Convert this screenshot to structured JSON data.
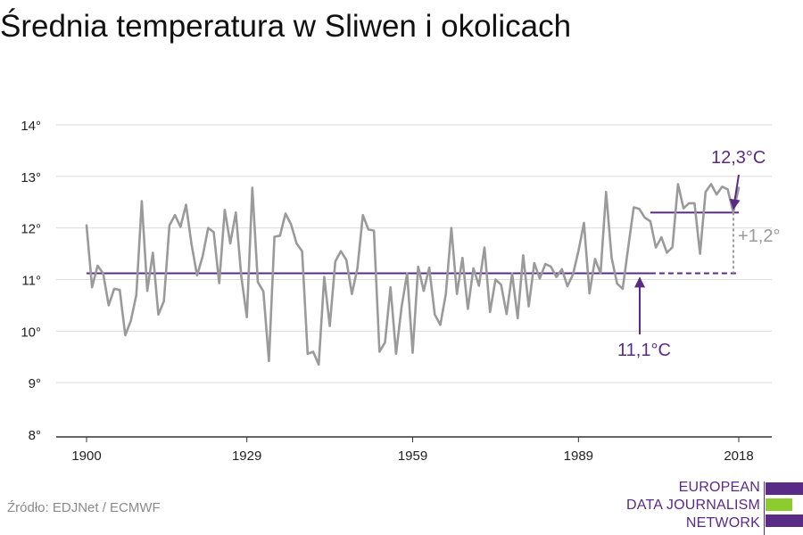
{
  "title": "Średnia temperatura w Sliwen i okolicach",
  "source": "Źródło: EDJNet / ECMWF",
  "logo": {
    "lines": [
      "EUROPEAN",
      "DATA JOURNALISM",
      "NETWORK"
    ],
    "colors": {
      "purple": "#5a2a87",
      "green": "#8ccc2e"
    }
  },
  "colors": {
    "series": "#9a9a9a",
    "reference": "#5a2a87",
    "difference": "#9a9a9a",
    "grid": "#dcdcdc",
    "axis": "#333333"
  },
  "chart_data": {
    "type": "line",
    "title": "Średnia temperatura w Sliwen i okolicach",
    "xlabel": "",
    "ylabel": "",
    "xlim": [
      1900,
      2018
    ],
    "ylim": [
      8,
      14
    ],
    "grid": true,
    "x_ticks": [
      1900,
      1929,
      1959,
      1989,
      2018
    ],
    "x_tick_labels": [
      "1900",
      "1929",
      "1959",
      "1989",
      "2018"
    ],
    "y_ticks": [
      8,
      9,
      10,
      11,
      12,
      13,
      14
    ],
    "y_tick_labels": [
      "8°",
      "9°",
      "10°",
      "11°",
      "12°",
      "13°",
      "14°"
    ],
    "x": [
      1900,
      1901,
      1902,
      1903,
      1904,
      1905,
      1906,
      1907,
      1908,
      1909,
      1910,
      1911,
      1912,
      1913,
      1914,
      1915,
      1916,
      1917,
      1918,
      1919,
      1920,
      1921,
      1922,
      1923,
      1924,
      1925,
      1926,
      1927,
      1928,
      1929,
      1930,
      1931,
      1932,
      1933,
      1934,
      1935,
      1936,
      1937,
      1938,
      1939,
      1940,
      1941,
      1942,
      1943,
      1944,
      1945,
      1946,
      1947,
      1948,
      1949,
      1950,
      1951,
      1952,
      1953,
      1954,
      1955,
      1956,
      1957,
      1958,
      1959,
      1960,
      1961,
      1962,
      1963,
      1964,
      1965,
      1966,
      1967,
      1968,
      1969,
      1970,
      1971,
      1972,
      1973,
      1974,
      1975,
      1976,
      1977,
      1978,
      1979,
      1980,
      1981,
      1982,
      1983,
      1984,
      1985,
      1986,
      1987,
      1988,
      1989,
      1990,
      1991,
      1992,
      1993,
      1994,
      1995,
      1996,
      1997,
      1998,
      1999,
      2000,
      2001,
      2002,
      2003,
      2004,
      2005,
      2006,
      2007,
      2008,
      2009,
      2010,
      2011,
      2012,
      2013,
      2014,
      2015,
      2016,
      2017,
      2018
    ],
    "series": [
      {
        "values": [
          12.05,
          10.85,
          11.27,
          11.12,
          10.5,
          10.82,
          10.8,
          9.92,
          10.2,
          10.7,
          12.52,
          10.78,
          11.52,
          10.32,
          10.58,
          12.05,
          12.25,
          12.02,
          12.45,
          11.68,
          11.08,
          11.45,
          12.0,
          11.92,
          10.93,
          12.35,
          11.7,
          12.3,
          11.05,
          10.27,
          12.78,
          10.95,
          10.77,
          9.42,
          11.83,
          11.85,
          12.28,
          12.07,
          11.7,
          11.55,
          9.56,
          9.6,
          9.35,
          11.05,
          10.1,
          11.35,
          11.55,
          11.38,
          10.72,
          11.22,
          12.25,
          11.97,
          11.95,
          9.6,
          9.78,
          10.85,
          9.56,
          10.47,
          11.12,
          9.58,
          11.25,
          10.78,
          11.23,
          10.32,
          10.12,
          10.72,
          12.0,
          10.72,
          11.42,
          10.43,
          11.22,
          10.88,
          11.62,
          10.37,
          11.0,
          10.9,
          10.33,
          11.12,
          10.25,
          11.47,
          10.48,
          11.32,
          11.02,
          11.3,
          11.25,
          11.05,
          11.2,
          10.87,
          11.1,
          11.55,
          12.1,
          10.73,
          11.4,
          11.12,
          12.7,
          11.42,
          10.92,
          10.82,
          11.62,
          12.4,
          12.37,
          12.2,
          12.13,
          11.62,
          11.82,
          11.52,
          11.63,
          12.85,
          12.38,
          12.48,
          12.48,
          11.5,
          12.7,
          12.85,
          12.65,
          12.8,
          12.75,
          12.3,
          12.78
        ]
      }
    ],
    "reference_line": {
      "x": [
        1900,
        2018
      ],
      "y": 11.12
    },
    "recent_line": {
      "x": [
        2002,
        2018
      ],
      "y": 12.3
    },
    "annotations": [
      {
        "text": "12,3°C",
        "x": 2018,
        "y": 12.3
      },
      {
        "text": "11,1°C",
        "x": 1999,
        "y": 11.12
      },
      {
        "text": "+1,2°",
        "x": 2018,
        "y": 11.7
      }
    ]
  }
}
